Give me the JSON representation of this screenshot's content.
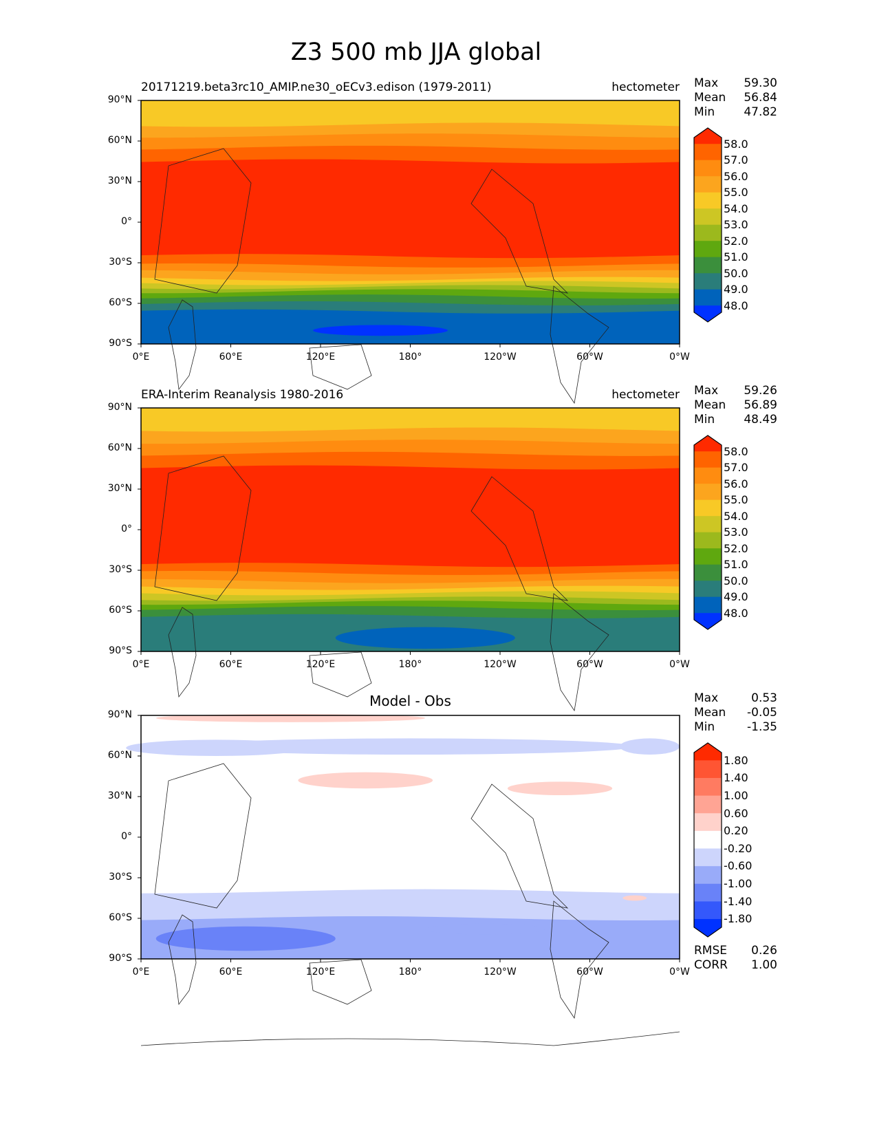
{
  "figure": {
    "title": "Z3 500 mb JJA global"
  },
  "axes": {
    "lat_ticks": [
      "90°N",
      "60°N",
      "30°N",
      "0°",
      "30°S",
      "60°S",
      "90°S"
    ],
    "lon_ticks": [
      "0°E",
      "60°E",
      "120°E",
      "180°",
      "120°W",
      "60°W",
      "0°W"
    ]
  },
  "panels": [
    {
      "title_left": "20171219.beta3rc10_AMIP.ne30_oECv3.edison (1979-2011)",
      "title_center": "",
      "units": "hectometer",
      "stats": [
        {
          "label": "Max",
          "value": "59.30"
        },
        {
          "label": "Mean",
          "value": "56.84"
        },
        {
          "label": "Min",
          "value": "47.82"
        }
      ],
      "colorbar": {
        "labels": [
          "58.0",
          "57.0",
          "56.0",
          "55.0",
          "54.0",
          "53.0",
          "52.0",
          "51.0",
          "50.0",
          "49.0",
          "48.0"
        ],
        "colors": [
          "#ff2a00",
          "#ff6400",
          "#ff8c10",
          "#fca51e",
          "#f8c926",
          "#cdc624",
          "#9cb91d",
          "#5fa80f",
          "#3b8f3c",
          "#2a7d7a",
          "#0063bb",
          "#0032ff"
        ]
      },
      "bands": [
        [
          90,
          72,
          4
        ],
        [
          72,
          64,
          3
        ],
        [
          64,
          55,
          2
        ],
        [
          55,
          45,
          1
        ],
        [
          45,
          -25,
          0
        ],
        [
          -25,
          -32,
          1
        ],
        [
          -32,
          -37,
          2
        ],
        [
          -37,
          -42,
          3
        ],
        [
          -42,
          -45,
          4
        ],
        [
          -45,
          -48,
          5
        ],
        [
          -48,
          -51,
          6
        ],
        [
          -51,
          -55,
          7
        ],
        [
          -55,
          -60,
          8
        ],
        [
          -60,
          -66,
          9
        ],
        [
          -66,
          -90,
          10
        ]
      ],
      "blobs": [
        {
          "lon": 160,
          "lat": -80,
          "dlon": 45,
          "dlat": 4,
          "c": 11
        }
      ]
    },
    {
      "title_left": "ERA-Interim Reanalysis 1980-2016",
      "title_center": "",
      "units": "hectometer",
      "stats": [
        {
          "label": "Max",
          "value": "59.26"
        },
        {
          "label": "Mean",
          "value": "56.89"
        },
        {
          "label": "Min",
          "value": "48.49"
        }
      ],
      "colorbar": {
        "labels": [
          "58.0",
          "57.0",
          "56.0",
          "55.0",
          "54.0",
          "53.0",
          "52.0",
          "51.0",
          "50.0",
          "49.0",
          "48.0"
        ],
        "colors": [
          "#ff2a00",
          "#ff6400",
          "#ff8c10",
          "#fca51e",
          "#f8c926",
          "#cdc624",
          "#9cb91d",
          "#5fa80f",
          "#3b8f3c",
          "#2a7d7a",
          "#0063bb",
          "#0032ff"
        ]
      },
      "bands": [
        [
          90,
          74,
          4
        ],
        [
          74,
          65,
          3
        ],
        [
          65,
          56,
          2
        ],
        [
          56,
          46,
          1
        ],
        [
          46,
          -26,
          0
        ],
        [
          -26,
          -32,
          1
        ],
        [
          -32,
          -38,
          2
        ],
        [
          -38,
          -43,
          3
        ],
        [
          -43,
          -47,
          4
        ],
        [
          -47,
          -51,
          5
        ],
        [
          -51,
          -54,
          6
        ],
        [
          -54,
          -58,
          7
        ],
        [
          -58,
          -64,
          8
        ],
        [
          -64,
          -90,
          9
        ]
      ],
      "blobs": [
        {
          "lon": 190,
          "lat": -80,
          "dlon": 60,
          "dlat": 8,
          "c": 10
        }
      ]
    },
    {
      "title_left": "",
      "title_center": "Model - Obs",
      "units": "",
      "stats": [
        {
          "label": "Max",
          "value": "0.53"
        },
        {
          "label": "Mean",
          "value": "-0.05"
        },
        {
          "label": "Min",
          "value": "-1.35"
        }
      ],
      "colorbar": {
        "labels": [
          "1.80",
          "1.40",
          "1.00",
          "0.60",
          "0.20",
          "-0.20",
          "-0.60",
          "-1.00",
          "-1.40",
          "-1.80"
        ],
        "colors": [
          "#ff2a00",
          "#ff5533",
          "#ff7b61",
          "#ffa494",
          "#ffd2cb",
          "#ffffff",
          "#cdd5fc",
          "#99abf9",
          "#6982f8",
          "#3458fb",
          "#0032ff"
        ]
      },
      "bands": [
        [
          90,
          60,
          5
        ],
        [
          60,
          -40,
          5
        ],
        [
          -40,
          -60,
          6
        ],
        [
          -60,
          -90,
          7
        ]
      ],
      "blobs": [
        {
          "lon": 100,
          "lat": 88,
          "dlon": 90,
          "dlat": 3,
          "c": 4
        },
        {
          "lon": 50,
          "lat": 66,
          "dlon": 60,
          "dlat": 6,
          "c": 6
        },
        {
          "lon": 180,
          "lat": 67,
          "dlon": 150,
          "dlat": 6,
          "c": 6
        },
        {
          "lon": 340,
          "lat": 67,
          "dlon": 20,
          "dlat": 6,
          "c": 6
        },
        {
          "lon": 150,
          "lat": 42,
          "dlon": 45,
          "dlat": 6,
          "c": 4
        },
        {
          "lon": 280,
          "lat": 36,
          "dlon": 35,
          "dlat": 5,
          "c": 4
        },
        {
          "lon": 330,
          "lat": -45,
          "dlon": 8,
          "dlat": 2,
          "c": 4
        },
        {
          "lon": 70,
          "lat": -75,
          "dlon": 60,
          "dlat": 9,
          "c": 8
        },
        {
          "lon": 230,
          "lat": -68,
          "dlon": 40,
          "dlat": 4,
          "c": 7
        }
      ],
      "extra_stats": [
        {
          "label": "RMSE",
          "value": "0.26"
        },
        {
          "label": "CORR",
          "value": "1.00"
        }
      ]
    }
  ]
}
